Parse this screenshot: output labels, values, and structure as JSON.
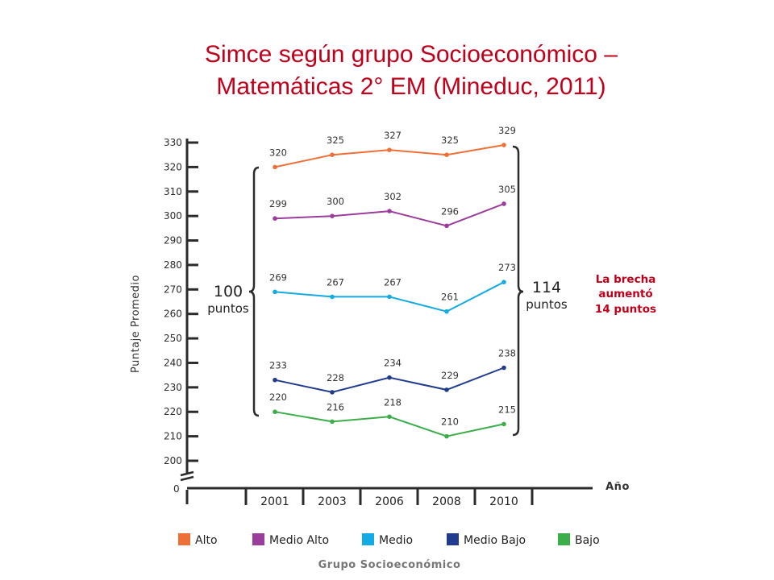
{
  "title_lines": [
    "Simce según grupo Socioeconómico –",
    "Matemáticas 2° EM (Mineduc, 2011)"
  ],
  "left_brace": {
    "value": "100",
    "unit": "puntos"
  },
  "right_brace": {
    "value": "114",
    "unit": "puntos"
  },
  "gap_note_lines": [
    "La brecha",
    "aumentó",
    "14 puntos"
  ],
  "colors": {
    "Alto": "#ee7036",
    "Medio Alto": "#9b3d9a",
    "Medio": "#14aae3",
    "Medio Bajo": "#213c8f",
    "Bajo": "#3cae49",
    "title": "#c0001a"
  },
  "chart_data": {
    "type": "line",
    "title": "Simce según grupo Socioeconómico – Matemáticas 2° EM (Mineduc, 2011)",
    "xlabel": "Año",
    "ylabel": "Puntaje Promedio",
    "legend_title": "Grupo Socioeconómico",
    "legend_position": "bottom",
    "x": [
      "2001",
      "2003",
      "2006",
      "2008",
      "2010"
    ],
    "ylim": [
      200,
      330
    ],
    "y_ticks": [
      "330",
      "320",
      "310",
      "300",
      "290",
      "280",
      "270",
      "260",
      "250",
      "240",
      "230",
      "220",
      "210",
      "200"
    ],
    "y_zero_label": "0",
    "axis_break": true,
    "grid": false,
    "series": [
      {
        "name": "Alto",
        "values": [
          320,
          325,
          327,
          325,
          329
        ]
      },
      {
        "name": "Medio Alto",
        "values": [
          299,
          300,
          302,
          296,
          305
        ]
      },
      {
        "name": "Medio",
        "values": [
          269,
          267,
          267,
          261,
          273
        ]
      },
      {
        "name": "Medio Bajo",
        "values": [
          233,
          228,
          234,
          229,
          238
        ]
      },
      {
        "name": "Bajo",
        "values": [
          220,
          216,
          218,
          210,
          215
        ]
      }
    ]
  }
}
